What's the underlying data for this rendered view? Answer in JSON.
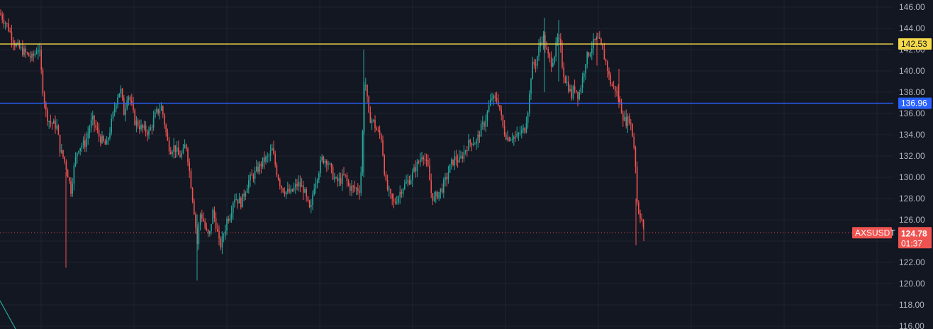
{
  "symbol": "AXSUSDT",
  "countdown": "01:37",
  "colors": {
    "background": "#131722",
    "grid": "#1f2330",
    "up": "#26a69a",
    "down": "#ef5350",
    "resistance": "#f5d94a",
    "support": "#2962ff",
    "axis_text": "#b2b5be"
  },
  "chart_data": {
    "type": "candlestick",
    "y_axis": {
      "ylim": [
        116,
        146
      ],
      "ticks": [
        "146.00",
        "144.00",
        "142.00",
        "140.00",
        "138.00",
        "136.00",
        "134.00",
        "132.00",
        "130.00",
        "128.00",
        "126.00",
        "124.00",
        "122.00",
        "120.00",
        "118.00",
        "116.00"
      ],
      "position": "right"
    },
    "grid": true,
    "horizontal_lines": [
      {
        "value": 142.53,
        "label": "142.53",
        "color": "#f5d94a"
      },
      {
        "value": 136.96,
        "label": "136.96",
        "color": "#2962ff"
      }
    ],
    "current_price": {
      "value": 124.78,
      "label": "124.78",
      "symbol": "AXSUSDT",
      "countdown": "01:37"
    },
    "close_path": [
      [
        0,
        145.4
      ],
      [
        10,
        144.3
      ],
      [
        22,
        142.4
      ],
      [
        35,
        141.7
      ],
      [
        45,
        141.2
      ],
      [
        55,
        142.3
      ],
      [
        60,
        138.5
      ],
      [
        65,
        136.0
      ],
      [
        70,
        135.2
      ],
      [
        80,
        134.8
      ],
      [
        85,
        132.5
      ],
      [
        90,
        131.8
      ],
      [
        95,
        130.5
      ],
      [
        100,
        128.8
      ],
      [
        105,
        131.2
      ],
      [
        110,
        132.8
      ],
      [
        120,
        133.2
      ],
      [
        130,
        135.5
      ],
      [
        140,
        133.8
      ],
      [
        150,
        132.9
      ],
      [
        160,
        136.0
      ],
      [
        165,
        137.6
      ],
      [
        170,
        138.3
      ],
      [
        175,
        136.0
      ],
      [
        180,
        138.0
      ],
      [
        185,
        136.9
      ],
      [
        190,
        135.3
      ],
      [
        200,
        134.6
      ],
      [
        210,
        134.2
      ],
      [
        220,
        136.0
      ],
      [
        228,
        136.6
      ],
      [
        232,
        135.1
      ],
      [
        236,
        133.4
      ],
      [
        240,
        132.6
      ],
      [
        246,
        132.9
      ],
      [
        252,
        132.0
      ],
      [
        258,
        132.2
      ],
      [
        262,
        133.3
      ],
      [
        265,
        131.8
      ],
      [
        270,
        129.0
      ],
      [
        275,
        126.2
      ],
      [
        278,
        123.6
      ],
      [
        282,
        126.6
      ],
      [
        286,
        126.2
      ],
      [
        290,
        125.0
      ],
      [
        295,
        124.3
      ],
      [
        300,
        126.8
      ],
      [
        305,
        125.5
      ],
      [
        310,
        123.4
      ],
      [
        315,
        124.4
      ],
      [
        320,
        126.0
      ],
      [
        325,
        126.6
      ],
      [
        330,
        128.2
      ],
      [
        340,
        127.6
      ],
      [
        350,
        129.6
      ],
      [
        360,
        130.4
      ],
      [
        366,
        131.0
      ],
      [
        372,
        131.6
      ],
      [
        378,
        131.8
      ],
      [
        384,
        132.6
      ],
      [
        390,
        130.6
      ],
      [
        396,
        129.2
      ],
      [
        402,
        128.7
      ],
      [
        410,
        128.5
      ],
      [
        420,
        129.4
      ],
      [
        428,
        128.9
      ],
      [
        434,
        127.5
      ],
      [
        438,
        126.6
      ],
      [
        442,
        129.0
      ],
      [
        448,
        130.3
      ],
      [
        454,
        131.7
      ],
      [
        462,
        131.6
      ],
      [
        468,
        130.4
      ],
      [
        474,
        129.6
      ],
      [
        480,
        129.7
      ],
      [
        486,
        130.2
      ],
      [
        492,
        129.1
      ],
      [
        500,
        128.9
      ],
      [
        508,
        128.9
      ],
      [
        511,
        133.0
      ],
      [
        513,
        139.0
      ],
      [
        516,
        138.7
      ],
      [
        520,
        135.7
      ],
      [
        526,
        135.3
      ],
      [
        532,
        134.3
      ],
      [
        538,
        133.7
      ],
      [
        544,
        129.4
      ],
      [
        550,
        128.2
      ],
      [
        556,
        127.5
      ],
      [
        562,
        128.3
      ],
      [
        568,
        129.1
      ],
      [
        574,
        129.5
      ],
      [
        580,
        130.0
      ],
      [
        586,
        130.9
      ],
      [
        592,
        131.6
      ],
      [
        596,
        132.4
      ],
      [
        600,
        131.5
      ],
      [
        604,
        130.8
      ],
      [
        608,
        128.6
      ],
      [
        612,
        127.9
      ],
      [
        618,
        128.5
      ],
      [
        624,
        129.0
      ],
      [
        630,
        130.0
      ],
      [
        636,
        131.2
      ],
      [
        642,
        131.8
      ],
      [
        648,
        131.5
      ],
      [
        654,
        132.3
      ],
      [
        660,
        133.1
      ],
      [
        666,
        133.4
      ],
      [
        672,
        133.3
      ],
      [
        678,
        134.5
      ],
      [
        684,
        135.2
      ],
      [
        690,
        136.7
      ],
      [
        694,
        137.5
      ],
      [
        698,
        137.2
      ],
      [
        702,
        137.4
      ],
      [
        706,
        136.0
      ],
      [
        710,
        134.5
      ],
      [
        716,
        133.7
      ],
      [
        722,
        133.9
      ],
      [
        728,
        133.7
      ],
      [
        734,
        134.2
      ],
      [
        740,
        134.5
      ],
      [
        746,
        137.0
      ],
      [
        750,
        140.4
      ],
      [
        756,
        140.8
      ],
      [
        762,
        142.7
      ],
      [
        766,
        143.3
      ],
      [
        770,
        142.0
      ],
      [
        774,
        141.2
      ],
      [
        778,
        140.8
      ],
      [
        782,
        141.6
      ],
      [
        786,
        142.9
      ],
      [
        790,
        142.5
      ],
      [
        794,
        140.0
      ],
      [
        798,
        139.1
      ],
      [
        802,
        138.5
      ],
      [
        806,
        137.6
      ],
      [
        810,
        138.6
      ],
      [
        816,
        137.6
      ],
      [
        822,
        139.4
      ],
      [
        826,
        141.0
      ],
      [
        830,
        141.6
      ],
      [
        836,
        142.5
      ],
      [
        840,
        142.8
      ],
      [
        844,
        142.9
      ],
      [
        848,
        142.2
      ],
      [
        852,
        141.4
      ],
      [
        856,
        140.5
      ],
      [
        860,
        139.1
      ],
      [
        864,
        138.5
      ],
      [
        868,
        138.3
      ],
      [
        872,
        137.5
      ],
      [
        876,
        136.5
      ],
      [
        880,
        135.4
      ],
      [
        884,
        135.2
      ],
      [
        888,
        135.6
      ],
      [
        892,
        134.0
      ],
      [
        896,
        132.0
      ],
      [
        898,
        128.0
      ],
      [
        900,
        127.0
      ],
      [
        903,
        126.5
      ],
      [
        906,
        125.8
      ],
      [
        908,
        124.78
      ]
    ]
  }
}
